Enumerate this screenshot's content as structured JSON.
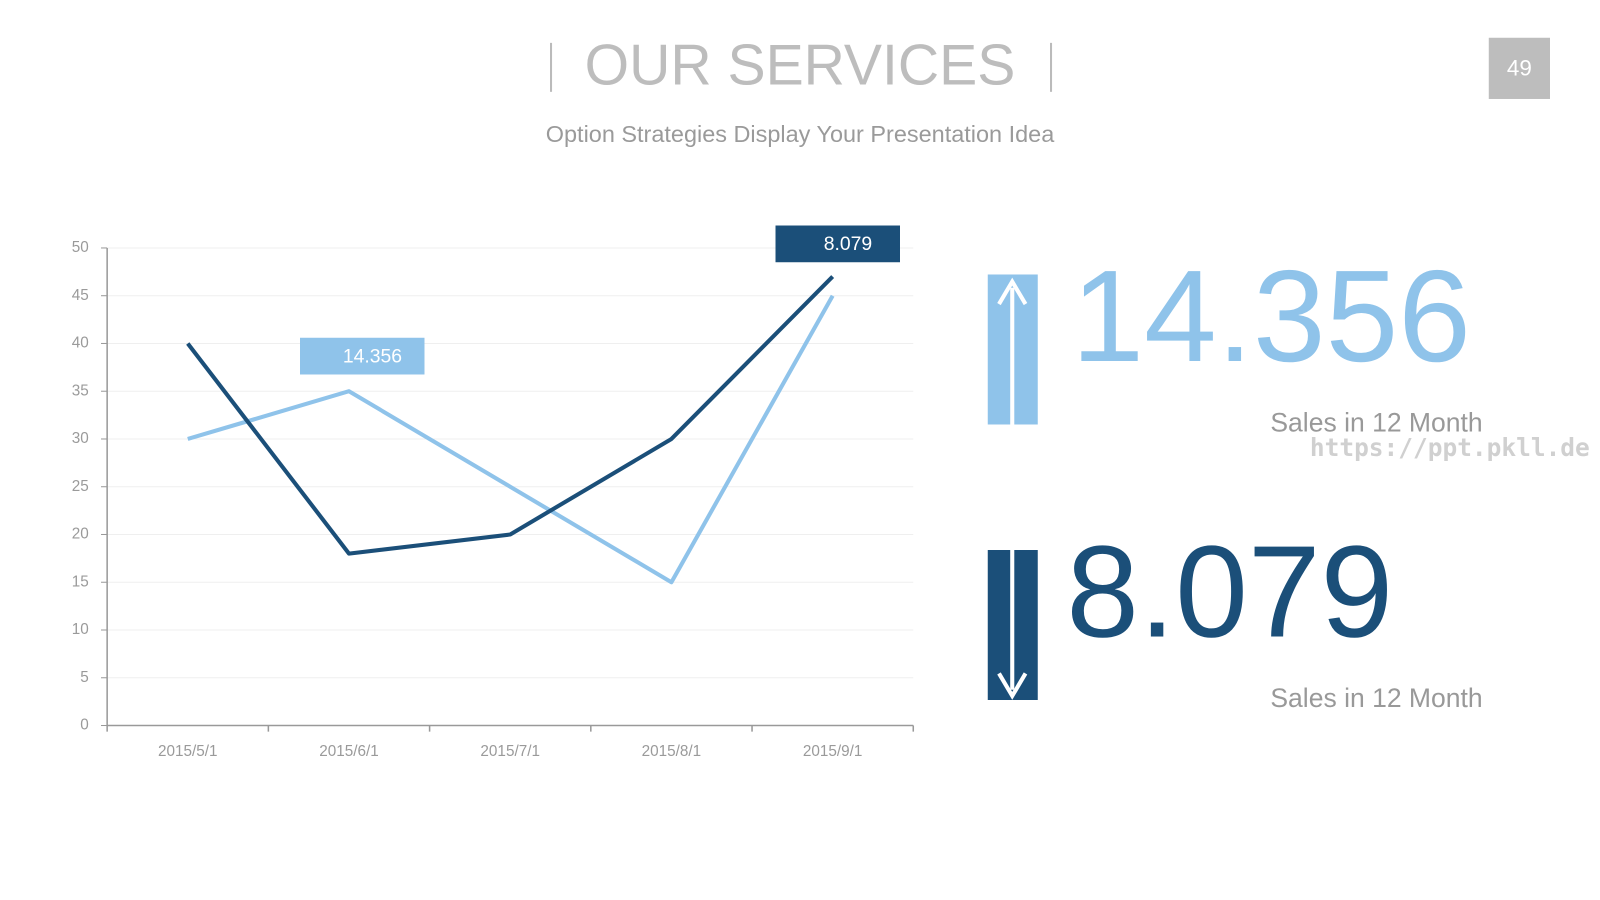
{
  "header": {
    "title": "OUR SERVICES",
    "subtitle": "Option Strategies Display Your Presentation Idea",
    "page_number": "49"
  },
  "chart_data": {
    "type": "line",
    "categories": [
      "2015/5/1",
      "2015/6/1",
      "2015/7/1",
      "2015/8/1",
      "2015/9/1"
    ],
    "series": [
      {
        "color": "#8fc3ea",
        "values": [
          30,
          35,
          25,
          15,
          45
        ]
      },
      {
        "color": "#1b4f79",
        "values": [
          40,
          18,
          20,
          30,
          47
        ]
      }
    ],
    "annotations": [
      {
        "text": "14.356",
        "color": "#8fc3ea"
      },
      {
        "text": "8.079",
        "color": "#1b4f79"
      }
    ],
    "ylim": [
      0,
      50
    ],
    "yticks": [
      0,
      5,
      10,
      15,
      20,
      25,
      30,
      35,
      40,
      45,
      50
    ],
    "grid": true
  },
  "stats": [
    {
      "value": "14.356",
      "label": "Sales in 12 Month"
    },
    {
      "value": "8.079",
      "label": "Sales in 12 Month"
    }
  ],
  "watermark": "https://ppt.pkll.de"
}
